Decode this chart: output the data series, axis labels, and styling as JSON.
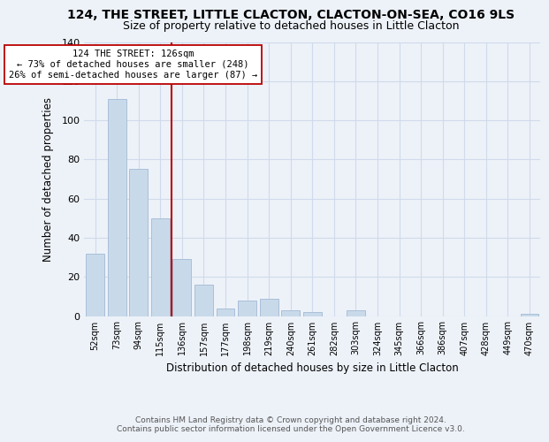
{
  "title": "124, THE STREET, LITTLE CLACTON, CLACTON-ON-SEA, CO16 9LS",
  "subtitle": "Size of property relative to detached houses in Little Clacton",
  "xlabel": "Distribution of detached houses by size in Little Clacton",
  "ylabel": "Number of detached properties",
  "bar_color": "#c8daea",
  "bar_edge_color": "#aabfd8",
  "categories": [
    "52sqm",
    "73sqm",
    "94sqm",
    "115sqm",
    "136sqm",
    "157sqm",
    "177sqm",
    "198sqm",
    "219sqm",
    "240sqm",
    "261sqm",
    "282sqm",
    "303sqm",
    "324sqm",
    "345sqm",
    "366sqm",
    "386sqm",
    "407sqm",
    "428sqm",
    "449sqm",
    "470sqm"
  ],
  "values": [
    32,
    111,
    75,
    50,
    29,
    16,
    4,
    8,
    9,
    3,
    2,
    0,
    3,
    0,
    0,
    0,
    0,
    0,
    0,
    0,
    1
  ],
  "vline_x": 3.5,
  "vline_color": "#bb0000",
  "annotation_text": "124 THE STREET: 126sqm\n← 73% of detached houses are smaller (248)\n26% of semi-detached houses are larger (87) →",
  "annotation_box_color": "#ffffff",
  "annotation_box_edge": "#bb0000",
  "ylim": [
    0,
    140
  ],
  "footnote": "Contains HM Land Registry data © Crown copyright and database right 2024.\nContains public sector information licensed under the Open Government Licence v3.0.",
  "background_color": "#edf2f9",
  "grid_color": "#d0daea",
  "title_fontsize": 10,
  "subtitle_fontsize": 9
}
